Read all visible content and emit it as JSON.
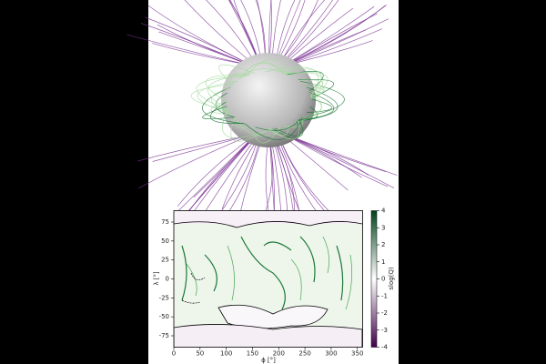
{
  "chart_data": {
    "type": "heatmap",
    "xlabel": "ϕ [°]",
    "ylabel": "λ [°]",
    "xlim": [
      0,
      360
    ],
    "xticks": [
      0,
      50,
      100,
      150,
      200,
      250,
      300,
      350
    ],
    "ylim": [
      -90,
      90
    ],
    "yticks": [
      -75,
      -50,
      -25,
      0,
      25,
      50,
      75
    ],
    "colorbar": {
      "label": "slog(Q)",
      "lim": [
        -4,
        4
      ],
      "ticks": [
        -4,
        -3,
        -2,
        -1,
        0,
        1,
        2,
        3,
        4
      ],
      "colors": [
        "#40004b",
        "#ffffff",
        "#00441b"
      ]
    }
  }
}
